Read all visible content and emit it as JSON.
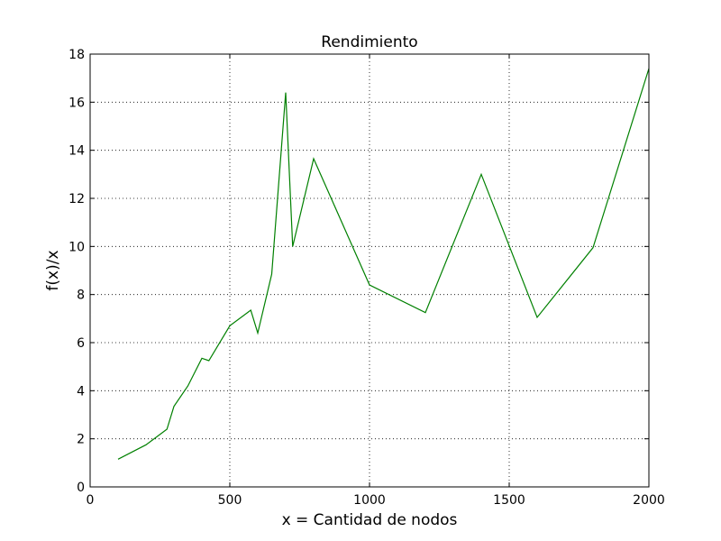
{
  "chart_data": {
    "type": "line",
    "title": "Rendimiento",
    "xlabel": "x = Cantidad de nodos",
    "ylabel": "f(x)/x",
    "xlim": [
      0,
      2000
    ],
    "ylim": [
      0,
      18
    ],
    "xticks": [
      0,
      500,
      1000,
      1500,
      2000
    ],
    "yticks": [
      0,
      2,
      4,
      6,
      8,
      10,
      12,
      14,
      16,
      18
    ],
    "grid": true,
    "legend": "none",
    "series": [
      {
        "color": "#008000",
        "x": [
          100,
          200,
          275,
          300,
          350,
          400,
          425,
          500,
          575,
          600,
          650,
          700,
          725,
          800,
          1000,
          1200,
          1400,
          1600,
          1800,
          2000
        ],
        "y": [
          1.15,
          1.75,
          2.4,
          3.35,
          4.2,
          5.35,
          5.25,
          6.7,
          7.35,
          6.4,
          8.85,
          16.4,
          10.0,
          13.65,
          8.4,
          7.25,
          13.0,
          7.05,
          9.95,
          17.4
        ]
      }
    ]
  }
}
